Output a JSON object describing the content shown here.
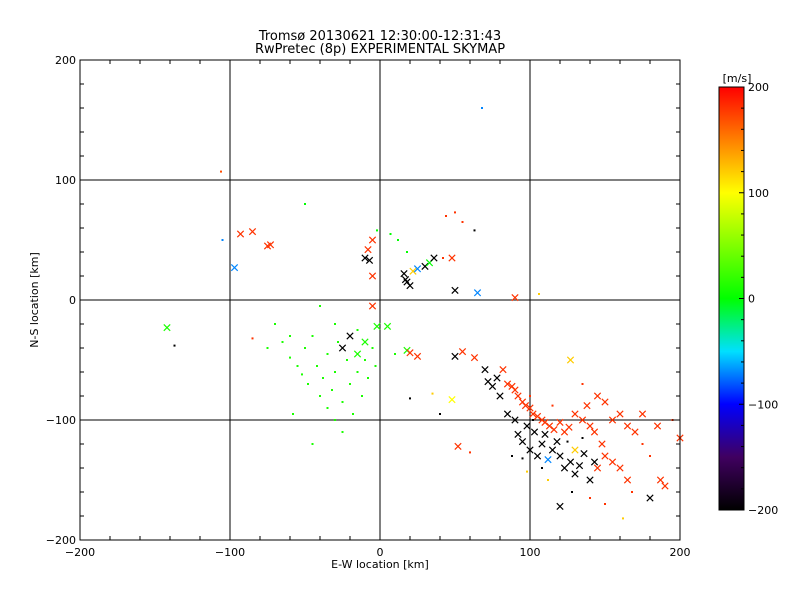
{
  "page": {
    "title_line1": "Tromsø 20130621 12:30:00-12:31:43",
    "title_line2": "RwPretec (8p) EXPERIMENTAL SKYMAP"
  },
  "chart_data": {
    "type": "scatter",
    "title": "Tromsø 20130621 12:30:00-12:31:43",
    "subtitle": "RwPretec (8p) EXPERIMENTAL SKYMAP",
    "xlabel": "E-W location [km]",
    "ylabel": "N-S location [km]",
    "xlim": [
      -200,
      200
    ],
    "ylim": [
      -200,
      200
    ],
    "xticks": [
      -200,
      -100,
      0,
      100,
      200
    ],
    "yticks": [
      -200,
      -100,
      0,
      100,
      200
    ],
    "grid_lines_x": [
      -100,
      0,
      100
    ],
    "grid_lines_y": [
      -100,
      0,
      100
    ],
    "grid": true,
    "colorbar": {
      "label": "[m/s]",
      "min": -200,
      "max": 200,
      "ticks": [
        -200,
        -100,
        0,
        100,
        200
      ],
      "colormap": "rainbow",
      "placement": "right"
    },
    "marker_types": [
      "x",
      "dot"
    ],
    "points": [
      {
        "x": -106,
        "y": 107,
        "v": 170,
        "m": "dot"
      },
      {
        "x": -50,
        "y": 80,
        "v": 0,
        "m": "dot"
      },
      {
        "x": 68,
        "y": 160,
        "v": -70,
        "m": "dot"
      },
      {
        "x": -105,
        "y": 50,
        "v": -70,
        "m": "dot"
      },
      {
        "x": -97,
        "y": 27,
        "v": -70,
        "m": "x"
      },
      {
        "x": -93,
        "y": 55,
        "v": 180,
        "m": "x"
      },
      {
        "x": -85,
        "y": 57,
        "v": 180,
        "m": "x"
      },
      {
        "x": -75,
        "y": 45,
        "v": 180,
        "m": "x"
      },
      {
        "x": -73,
        "y": 46,
        "v": 180,
        "m": "x"
      },
      {
        "x": -142,
        "y": -23,
        "v": 10,
        "m": "x"
      },
      {
        "x": -137,
        "y": -38,
        "v": -200,
        "m": "dot"
      },
      {
        "x": -85,
        "y": -32,
        "v": 180,
        "m": "dot"
      },
      {
        "x": -10,
        "y": 35,
        "v": -200,
        "m": "x"
      },
      {
        "x": -7,
        "y": 33,
        "v": -200,
        "m": "x"
      },
      {
        "x": -8,
        "y": 42,
        "v": 180,
        "m": "x"
      },
      {
        "x": -5,
        "y": 50,
        "v": 180,
        "m": "x"
      },
      {
        "x": -5,
        "y": 20,
        "v": 180,
        "m": "x"
      },
      {
        "x": -2,
        "y": 58,
        "v": 0,
        "m": "dot"
      },
      {
        "x": 7,
        "y": 55,
        "v": 0,
        "m": "dot"
      },
      {
        "x": 12,
        "y": 50,
        "v": 0,
        "m": "dot"
      },
      {
        "x": 18,
        "y": 40,
        "v": 0,
        "m": "dot"
      },
      {
        "x": 16,
        "y": 22,
        "v": -200,
        "m": "x"
      },
      {
        "x": 18,
        "y": 15,
        "v": -200,
        "m": "x"
      },
      {
        "x": 20,
        "y": 12,
        "v": -200,
        "m": "x"
      },
      {
        "x": 17,
        "y": 17,
        "v": -200,
        "m": "x"
      },
      {
        "x": 22,
        "y": 24,
        "v": 120,
        "m": "x"
      },
      {
        "x": 25,
        "y": 26,
        "v": -70,
        "m": "x"
      },
      {
        "x": 30,
        "y": 28,
        "v": -200,
        "m": "x"
      },
      {
        "x": 33,
        "y": 31,
        "v": 0,
        "m": "x"
      },
      {
        "x": 36,
        "y": 35,
        "v": -200,
        "m": "x"
      },
      {
        "x": 42,
        "y": 35,
        "v": 180,
        "m": "dot"
      },
      {
        "x": 48,
        "y": 35,
        "v": 180,
        "m": "x"
      },
      {
        "x": 44,
        "y": 70,
        "v": 180,
        "m": "dot"
      },
      {
        "x": 50,
        "y": 73,
        "v": 180,
        "m": "dot"
      },
      {
        "x": 55,
        "y": 65,
        "v": 180,
        "m": "dot"
      },
      {
        "x": 63,
        "y": 58,
        "v": -200,
        "m": "dot"
      },
      {
        "x": 50,
        "y": 8,
        "v": -200,
        "m": "x"
      },
      {
        "x": 65,
        "y": 6,
        "v": -70,
        "m": "x"
      },
      {
        "x": 90,
        "y": 2,
        "v": 180,
        "m": "x"
      },
      {
        "x": 106,
        "y": 5,
        "v": 120,
        "m": "dot"
      },
      {
        "x": -40,
        "y": -5,
        "v": 10,
        "m": "dot"
      },
      {
        "x": -30,
        "y": -20,
        "v": 10,
        "m": "dot"
      },
      {
        "x": -25,
        "y": -40,
        "v": -200,
        "m": "x"
      },
      {
        "x": -20,
        "y": -30,
        "v": -200,
        "m": "x"
      },
      {
        "x": -15,
        "y": -45,
        "v": 10,
        "m": "x"
      },
      {
        "x": -10,
        "y": -35,
        "v": 10,
        "m": "x"
      },
      {
        "x": -5,
        "y": -5,
        "v": 180,
        "m": "x"
      },
      {
        "x": -2,
        "y": -22,
        "v": 10,
        "m": "x"
      },
      {
        "x": 5,
        "y": -22,
        "v": 10,
        "m": "x"
      },
      {
        "x": 18,
        "y": -42,
        "v": 10,
        "m": "x"
      },
      {
        "x": 20,
        "y": -44,
        "v": 180,
        "m": "x"
      },
      {
        "x": 25,
        "y": -47,
        "v": 180,
        "m": "x"
      },
      {
        "x": -70,
        "y": -20,
        "v": 10,
        "m": "dot"
      },
      {
        "x": -65,
        "y": -35,
        "v": 10,
        "m": "dot"
      },
      {
        "x": -60,
        "y": -48,
        "v": 10,
        "m": "dot"
      },
      {
        "x": -55,
        "y": -55,
        "v": 10,
        "m": "dot"
      },
      {
        "x": -52,
        "y": -62,
        "v": 10,
        "m": "dot"
      },
      {
        "x": -50,
        "y": -40,
        "v": 10,
        "m": "dot"
      },
      {
        "x": -48,
        "y": -70,
        "v": 10,
        "m": "dot"
      },
      {
        "x": -45,
        "y": -30,
        "v": 10,
        "m": "dot"
      },
      {
        "x": -42,
        "y": -55,
        "v": 10,
        "m": "dot"
      },
      {
        "x": -40,
        "y": -80,
        "v": 10,
        "m": "dot"
      },
      {
        "x": -38,
        "y": -65,
        "v": 10,
        "m": "dot"
      },
      {
        "x": -35,
        "y": -90,
        "v": 10,
        "m": "dot"
      },
      {
        "x": -35,
        "y": -45,
        "v": 10,
        "m": "dot"
      },
      {
        "x": -32,
        "y": -75,
        "v": 10,
        "m": "dot"
      },
      {
        "x": -30,
        "y": -100,
        "v": 10,
        "m": "dot"
      },
      {
        "x": -30,
        "y": -60,
        "v": 10,
        "m": "dot"
      },
      {
        "x": -28,
        "y": -35,
        "v": 10,
        "m": "dot"
      },
      {
        "x": -25,
        "y": -85,
        "v": 10,
        "m": "dot"
      },
      {
        "x": -25,
        "y": -110,
        "v": 10,
        "m": "dot"
      },
      {
        "x": -22,
        "y": -50,
        "v": 10,
        "m": "dot"
      },
      {
        "x": -20,
        "y": -70,
        "v": 10,
        "m": "dot"
      },
      {
        "x": -18,
        "y": -95,
        "v": 10,
        "m": "dot"
      },
      {
        "x": -15,
        "y": -60,
        "v": 10,
        "m": "dot"
      },
      {
        "x": -15,
        "y": -25,
        "v": 10,
        "m": "dot"
      },
      {
        "x": -12,
        "y": -80,
        "v": 10,
        "m": "dot"
      },
      {
        "x": -10,
        "y": -50,
        "v": 10,
        "m": "dot"
      },
      {
        "x": -8,
        "y": -65,
        "v": 10,
        "m": "dot"
      },
      {
        "x": -5,
        "y": -40,
        "v": 10,
        "m": "dot"
      },
      {
        "x": -3,
        "y": -55,
        "v": 10,
        "m": "dot"
      },
      {
        "x": -58,
        "y": -95,
        "v": 10,
        "m": "dot"
      },
      {
        "x": -45,
        "y": -120,
        "v": 10,
        "m": "dot"
      },
      {
        "x": -60,
        "y": -30,
        "v": 10,
        "m": "dot"
      },
      {
        "x": -75,
        "y": -40,
        "v": 10,
        "m": "dot"
      },
      {
        "x": 10,
        "y": -45,
        "v": 10,
        "m": "dot"
      },
      {
        "x": 20,
        "y": -82,
        "v": -200,
        "m": "dot"
      },
      {
        "x": 35,
        "y": -78,
        "v": 120,
        "m": "dot"
      },
      {
        "x": 40,
        "y": -95,
        "v": -200,
        "m": "dot"
      },
      {
        "x": 48,
        "y": -83,
        "v": 100,
        "m": "x"
      },
      {
        "x": 50,
        "y": -47,
        "v": -200,
        "m": "x"
      },
      {
        "x": 55,
        "y": -43,
        "v": 180,
        "m": "x"
      },
      {
        "x": 52,
        "y": -122,
        "v": 180,
        "m": "x"
      },
      {
        "x": 60,
        "y": -127,
        "v": 180,
        "m": "dot"
      },
      {
        "x": 63,
        "y": -48,
        "v": 180,
        "m": "x"
      },
      {
        "x": 70,
        "y": -58,
        "v": -200,
        "m": "x"
      },
      {
        "x": 72,
        "y": -68,
        "v": -200,
        "m": "x"
      },
      {
        "x": 75,
        "y": -72,
        "v": -200,
        "m": "x"
      },
      {
        "x": 78,
        "y": -65,
        "v": -200,
        "m": "x"
      },
      {
        "x": 80,
        "y": -80,
        "v": -200,
        "m": "x"
      },
      {
        "x": 82,
        "y": -58,
        "v": 180,
        "m": "x"
      },
      {
        "x": 85,
        "y": -70,
        "v": 180,
        "m": "x"
      },
      {
        "x": 88,
        "y": -72,
        "v": 180,
        "m": "x"
      },
      {
        "x": 90,
        "y": -75,
        "v": 180,
        "m": "x"
      },
      {
        "x": 92,
        "y": -80,
        "v": 180,
        "m": "x"
      },
      {
        "x": 95,
        "y": -85,
        "v": 180,
        "m": "x"
      },
      {
        "x": 97,
        "y": -88,
        "v": 180,
        "m": "x"
      },
      {
        "x": 100,
        "y": -90,
        "v": 180,
        "m": "x"
      },
      {
        "x": 102,
        "y": -95,
        "v": 180,
        "m": "x"
      },
      {
        "x": 105,
        "y": -97,
        "v": 180,
        "m": "x"
      },
      {
        "x": 108,
        "y": -100,
        "v": 180,
        "m": "x"
      },
      {
        "x": 110,
        "y": -102,
        "v": 180,
        "m": "x"
      },
      {
        "x": 113,
        "y": -105,
        "v": 180,
        "m": "x"
      },
      {
        "x": 116,
        "y": -108,
        "v": 180,
        "m": "x"
      },
      {
        "x": 120,
        "y": -102,
        "v": 180,
        "m": "x"
      },
      {
        "x": 123,
        "y": -110,
        "v": 180,
        "m": "x"
      },
      {
        "x": 126,
        "y": -106,
        "v": 180,
        "m": "x"
      },
      {
        "x": 130,
        "y": -95,
        "v": 180,
        "m": "x"
      },
      {
        "x": 135,
        "y": -100,
        "v": 180,
        "m": "x"
      },
      {
        "x": 140,
        "y": -105,
        "v": 180,
        "m": "x"
      },
      {
        "x": 143,
        "y": -110,
        "v": 180,
        "m": "x"
      },
      {
        "x": 148,
        "y": -120,
        "v": 180,
        "m": "x"
      },
      {
        "x": 155,
        "y": -100,
        "v": 180,
        "m": "x"
      },
      {
        "x": 160,
        "y": -95,
        "v": 180,
        "m": "x"
      },
      {
        "x": 165,
        "y": -105,
        "v": 180,
        "m": "x"
      },
      {
        "x": 170,
        "y": -110,
        "v": 180,
        "m": "x"
      },
      {
        "x": 175,
        "y": -95,
        "v": 180,
        "m": "x"
      },
      {
        "x": 185,
        "y": -105,
        "v": 180,
        "m": "x"
      },
      {
        "x": 200,
        "y": -115,
        "v": 180,
        "m": "x"
      },
      {
        "x": 150,
        "y": -85,
        "v": 180,
        "m": "x"
      },
      {
        "x": 145,
        "y": -80,
        "v": 180,
        "m": "x"
      },
      {
        "x": 138,
        "y": -88,
        "v": 180,
        "m": "x"
      },
      {
        "x": 85,
        "y": -95,
        "v": -200,
        "m": "x"
      },
      {
        "x": 90,
        "y": -100,
        "v": -200,
        "m": "x"
      },
      {
        "x": 92,
        "y": -112,
        "v": -200,
        "m": "x"
      },
      {
        "x": 95,
        "y": -118,
        "v": -200,
        "m": "x"
      },
      {
        "x": 98,
        "y": -105,
        "v": -200,
        "m": "x"
      },
      {
        "x": 100,
        "y": -125,
        "v": -200,
        "m": "x"
      },
      {
        "x": 103,
        "y": -110,
        "v": -200,
        "m": "x"
      },
      {
        "x": 105,
        "y": -130,
        "v": -200,
        "m": "x"
      },
      {
        "x": 108,
        "y": -120,
        "v": -200,
        "m": "x"
      },
      {
        "x": 110,
        "y": -112,
        "v": -200,
        "m": "x"
      },
      {
        "x": 112,
        "y": -133,
        "v": -70,
        "m": "x"
      },
      {
        "x": 115,
        "y": -125,
        "v": -200,
        "m": "x"
      },
      {
        "x": 118,
        "y": -118,
        "v": -200,
        "m": "x"
      },
      {
        "x": 120,
        "y": -130,
        "v": -200,
        "m": "x"
      },
      {
        "x": 123,
        "y": -140,
        "v": -200,
        "m": "x"
      },
      {
        "x": 127,
        "y": -135,
        "v": -200,
        "m": "x"
      },
      {
        "x": 130,
        "y": -145,
        "v": -200,
        "m": "x"
      },
      {
        "x": 133,
        "y": -138,
        "v": -200,
        "m": "x"
      },
      {
        "x": 136,
        "y": -128,
        "v": -200,
        "m": "x"
      },
      {
        "x": 140,
        "y": -150,
        "v": -200,
        "m": "x"
      },
      {
        "x": 143,
        "y": -135,
        "v": -200,
        "m": "x"
      },
      {
        "x": 145,
        "y": -140,
        "v": 180,
        "m": "x"
      },
      {
        "x": 150,
        "y": -130,
        "v": 180,
        "m": "x"
      },
      {
        "x": 155,
        "y": -135,
        "v": 180,
        "m": "x"
      },
      {
        "x": 160,
        "y": -140,
        "v": 180,
        "m": "x"
      },
      {
        "x": 165,
        "y": -150,
        "v": 180,
        "m": "x"
      },
      {
        "x": 180,
        "y": -165,
        "v": -200,
        "m": "x"
      },
      {
        "x": 190,
        "y": -155,
        "v": 180,
        "m": "x"
      },
      {
        "x": 187,
        "y": -150,
        "v": 180,
        "m": "x"
      },
      {
        "x": 120,
        "y": -172,
        "v": -200,
        "m": "x"
      },
      {
        "x": 127,
        "y": -50,
        "v": 120,
        "m": "x"
      },
      {
        "x": 130,
        "y": -125,
        "v": 120,
        "m": "x"
      },
      {
        "x": 112,
        "y": -150,
        "v": 120,
        "m": "dot"
      },
      {
        "x": 98,
        "y": -143,
        "v": 120,
        "m": "dot"
      },
      {
        "x": 162,
        "y": -182,
        "v": 120,
        "m": "dot"
      },
      {
        "x": 140,
        "y": -165,
        "v": 180,
        "m": "dot"
      },
      {
        "x": 150,
        "y": -170,
        "v": 180,
        "m": "dot"
      },
      {
        "x": 115,
        "y": -88,
        "v": 180,
        "m": "dot"
      },
      {
        "x": 100,
        "y": -80,
        "v": 180,
        "m": "dot"
      },
      {
        "x": 135,
        "y": -70,
        "v": 180,
        "m": "dot"
      },
      {
        "x": 175,
        "y": -120,
        "v": 180,
        "m": "dot"
      },
      {
        "x": 180,
        "y": -130,
        "v": 180,
        "m": "dot"
      },
      {
        "x": 168,
        "y": -160,
        "v": 180,
        "m": "dot"
      },
      {
        "x": 195,
        "y": -100,
        "v": 180,
        "m": "dot"
      },
      {
        "x": 128,
        "y": -160,
        "v": -200,
        "m": "dot"
      },
      {
        "x": 108,
        "y": -140,
        "v": -200,
        "m": "dot"
      },
      {
        "x": 125,
        "y": -118,
        "v": -200,
        "m": "dot"
      },
      {
        "x": 135,
        "y": -115,
        "v": -200,
        "m": "dot"
      },
      {
        "x": 88,
        "y": -130,
        "v": -200,
        "m": "dot"
      },
      {
        "x": 95,
        "y": -132,
        "v": -200,
        "m": "dot"
      },
      {
        "x": 102,
        "y": -100,
        "v": -200,
        "m": "dot"
      }
    ]
  }
}
